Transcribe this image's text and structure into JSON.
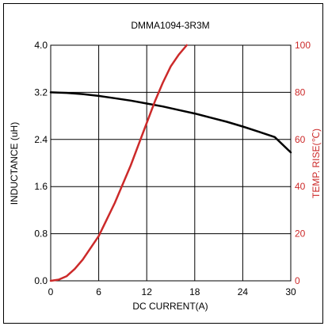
{
  "chart_data": {
    "type": "line",
    "title": "DMMA1094-3R3M",
    "xlabel": "DC CURRENT(A)",
    "ylabel_left": "INDUCTANCE (uH)",
    "ylabel_right": "TEMP. RISE(℃)",
    "xlim": [
      0,
      30
    ],
    "ylim_left": [
      0,
      4.0
    ],
    "ylim_right": [
      0,
      100
    ],
    "x_ticks": [
      "0",
      "6",
      "12",
      "18",
      "24",
      "30"
    ],
    "y_ticks_left": [
      "0.0",
      "0.8",
      "1.6",
      "2.4",
      "3.2",
      "4.0"
    ],
    "y_ticks_right": [
      "0",
      "20",
      "40",
      "60",
      "80",
      "100"
    ],
    "grid": true,
    "series": [
      {
        "axis": "left",
        "color": "#000000",
        "x": [
          0,
          2,
          4,
          6,
          8,
          10,
          12,
          14,
          16,
          18,
          20,
          22,
          24,
          26,
          28,
          30
        ],
        "y": [
          3.2,
          3.19,
          3.17,
          3.14,
          3.1,
          3.06,
          3.01,
          2.96,
          2.9,
          2.84,
          2.77,
          2.7,
          2.62,
          2.53,
          2.44,
          2.18
        ]
      },
      {
        "axis": "right",
        "color": "#cc2a2a",
        "x": [
          0,
          1,
          2,
          3,
          4,
          5,
          6,
          7,
          8,
          9,
          10,
          11,
          12,
          13,
          14,
          15,
          16,
          17
        ],
        "y": [
          0,
          0.5,
          2,
          5,
          9,
          14,
          19,
          26,
          33,
          41,
          49,
          58,
          67,
          76,
          84,
          91,
          96,
          100
        ]
      }
    ]
  }
}
